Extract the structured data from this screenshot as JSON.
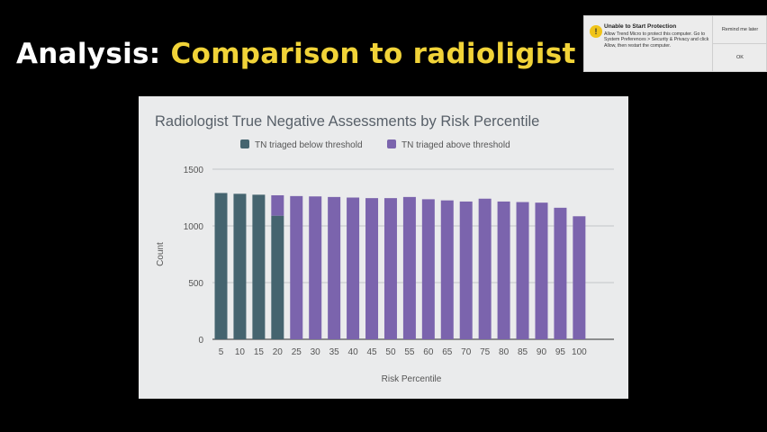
{
  "slide": {
    "title_prefix": "Analysis:",
    "title_highlight": "Comparison to radioligist"
  },
  "notification": {
    "title": "Unable to Start Protection",
    "body": "Allow Trend Micro to protect this computer. Go to System Preferences > Security & Privacy and click Allow, then restart the computer.",
    "remind_label": "Remind me later",
    "ok_label": "OK",
    "icon": "warning-icon"
  },
  "chart_data": {
    "type": "bar",
    "title": "Radiologist True Negative Assessments by Risk Percentile",
    "xlabel": "Risk Percentile",
    "ylabel": "Count",
    "ylim": [
      0,
      1500
    ],
    "yticks": [
      0,
      500,
      1000,
      1500
    ],
    "grid": true,
    "legend_position": "top",
    "stacked": true,
    "categories": [
      "5",
      "10",
      "15",
      "20",
      "25",
      "30",
      "35",
      "40",
      "45",
      "50",
      "55",
      "60",
      "65",
      "70",
      "75",
      "80",
      "85",
      "90",
      "95",
      "100"
    ],
    "series": [
      {
        "name": "TN triaged below threshold",
        "color": "#45646f",
        "values": [
          1290,
          1283,
          1275,
          1090,
          0,
          0,
          0,
          0,
          0,
          0,
          0,
          0,
          0,
          0,
          0,
          0,
          0,
          0,
          0,
          0
        ]
      },
      {
        "name": "TN triaged above threshold",
        "color": "#7b64ad",
        "values": [
          0,
          0,
          0,
          180,
          1263,
          1260,
          1255,
          1250,
          1245,
          1245,
          1255,
          1235,
          1225,
          1215,
          1240,
          1215,
          1210,
          1205,
          1160,
          1085
        ]
      }
    ]
  }
}
